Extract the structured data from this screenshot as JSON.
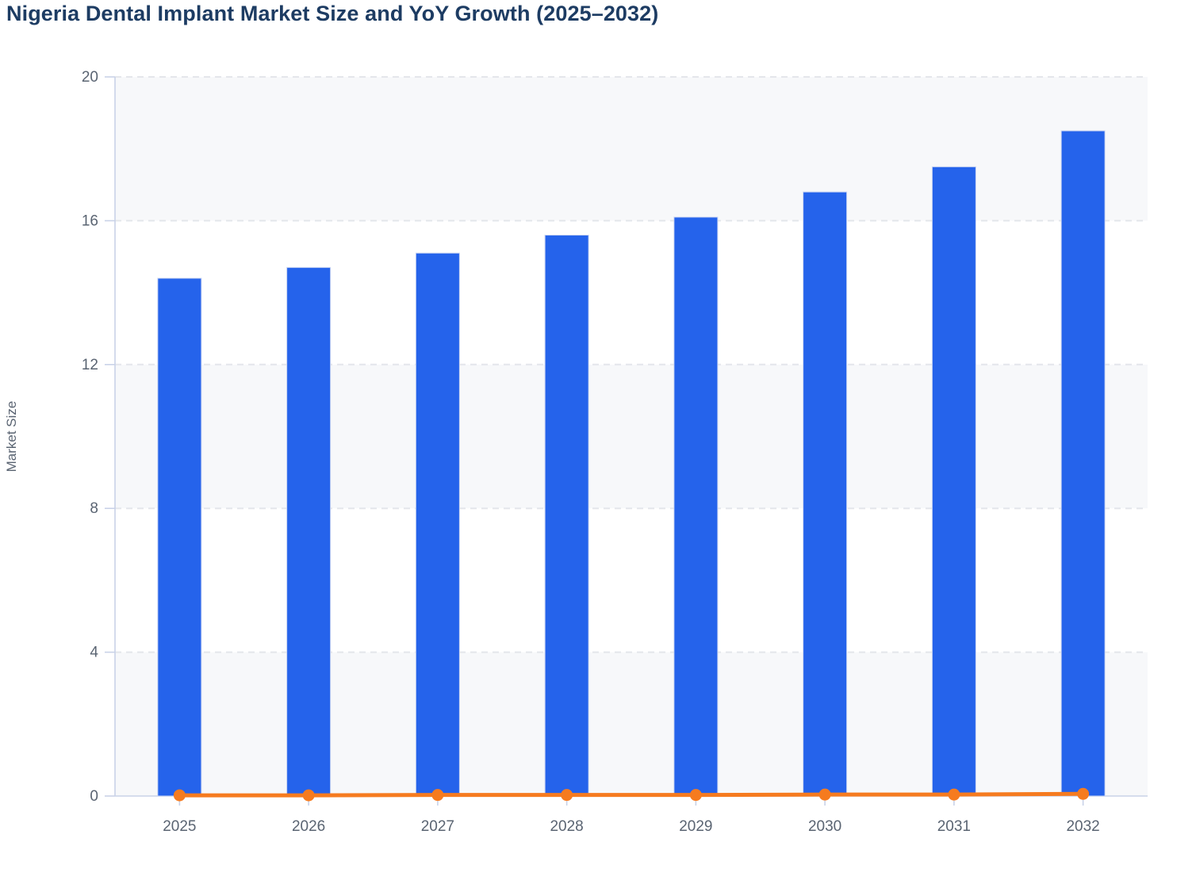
{
  "page": {
    "title": "Nigeria Dental Implant Market Size and YoY Growth (2025–2032)"
  },
  "chart_data": {
    "type": "bar",
    "title": "Nigeria Dental Implant Market Size and YoY Growth (2025–2032)",
    "categories": [
      "2025",
      "2026",
      "2027",
      "2028",
      "2029",
      "2030",
      "2031",
      "2032"
    ],
    "series": [
      {
        "name": "Market Size",
        "type": "bar",
        "color": "#2563eb",
        "values": [
          14.4,
          14.7,
          15.1,
          15.6,
          16.1,
          16.8,
          17.5,
          18.5
        ]
      },
      {
        "name": "YoY Growth",
        "type": "line",
        "color": "#f67b1f",
        "values": [
          0.02,
          0.02,
          0.03,
          0.03,
          0.03,
          0.04,
          0.04,
          0.06
        ],
        "note": "renders as flat line hugging the zero baseline with round markers"
      }
    ],
    "xlabel": "",
    "ylabel": "Market Size",
    "ylim": [
      0,
      20
    ],
    "yticks": [
      0,
      4,
      8,
      12,
      16,
      20
    ],
    "legend_position": "none",
    "grid": "horizontal-dashed",
    "plot_bands": "alternating fill between y gridlines starting gray at 0-4"
  },
  "colors": {
    "bar": "#2563eb",
    "bar_border": "#c9d4f2",
    "line": "#f67b1f",
    "title_text": "#1d3c63",
    "axis_line": "#c9d2e8",
    "tick_text": "#5a6472",
    "gridline": "#e4e6eb",
    "band_fill": "#f7f8fa",
    "band_fill_alt": "#ffffff"
  }
}
